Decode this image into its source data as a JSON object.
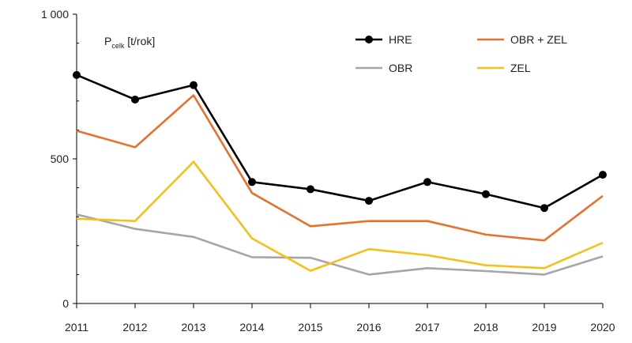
{
  "chart_data": {
    "type": "line",
    "ylabel_main": "P",
    "ylabel_sub": "celk",
    "ylabel_unit": " [t/rok]",
    "x": [
      "2011",
      "2012",
      "2013",
      "2014",
      "2015",
      "2016",
      "2017",
      "2018",
      "2019",
      "2020"
    ],
    "ylim": [
      0,
      1000
    ],
    "yticks": [
      0,
      500,
      1000
    ],
    "ytick_labels": [
      "0",
      "500",
      "1 000"
    ],
    "series": [
      {
        "name": "HRE",
        "color": "#000000",
        "markers": true,
        "values": [
          790,
          705,
          755,
          420,
          395,
          355,
          420,
          378,
          330,
          445
        ]
      },
      {
        "name": "OBR + ZEL",
        "color": "#e8712c",
        "markers": false,
        "values": [
          597,
          540,
          720,
          382,
          267,
          285,
          285,
          238,
          218,
          372
        ]
      },
      {
        "name": "OBR",
        "color": "#a6a6a6",
        "markers": false,
        "values": [
          308,
          258,
          230,
          160,
          158,
          100,
          122,
          112,
          100,
          163
        ]
      },
      {
        "name": "ZEL",
        "color": "#f5c01a",
        "markers": false,
        "values": [
          293,
          285,
          490,
          225,
          113,
          188,
          167,
          132,
          122,
          210
        ]
      }
    ],
    "grid": false,
    "legend_position": "top-right"
  }
}
